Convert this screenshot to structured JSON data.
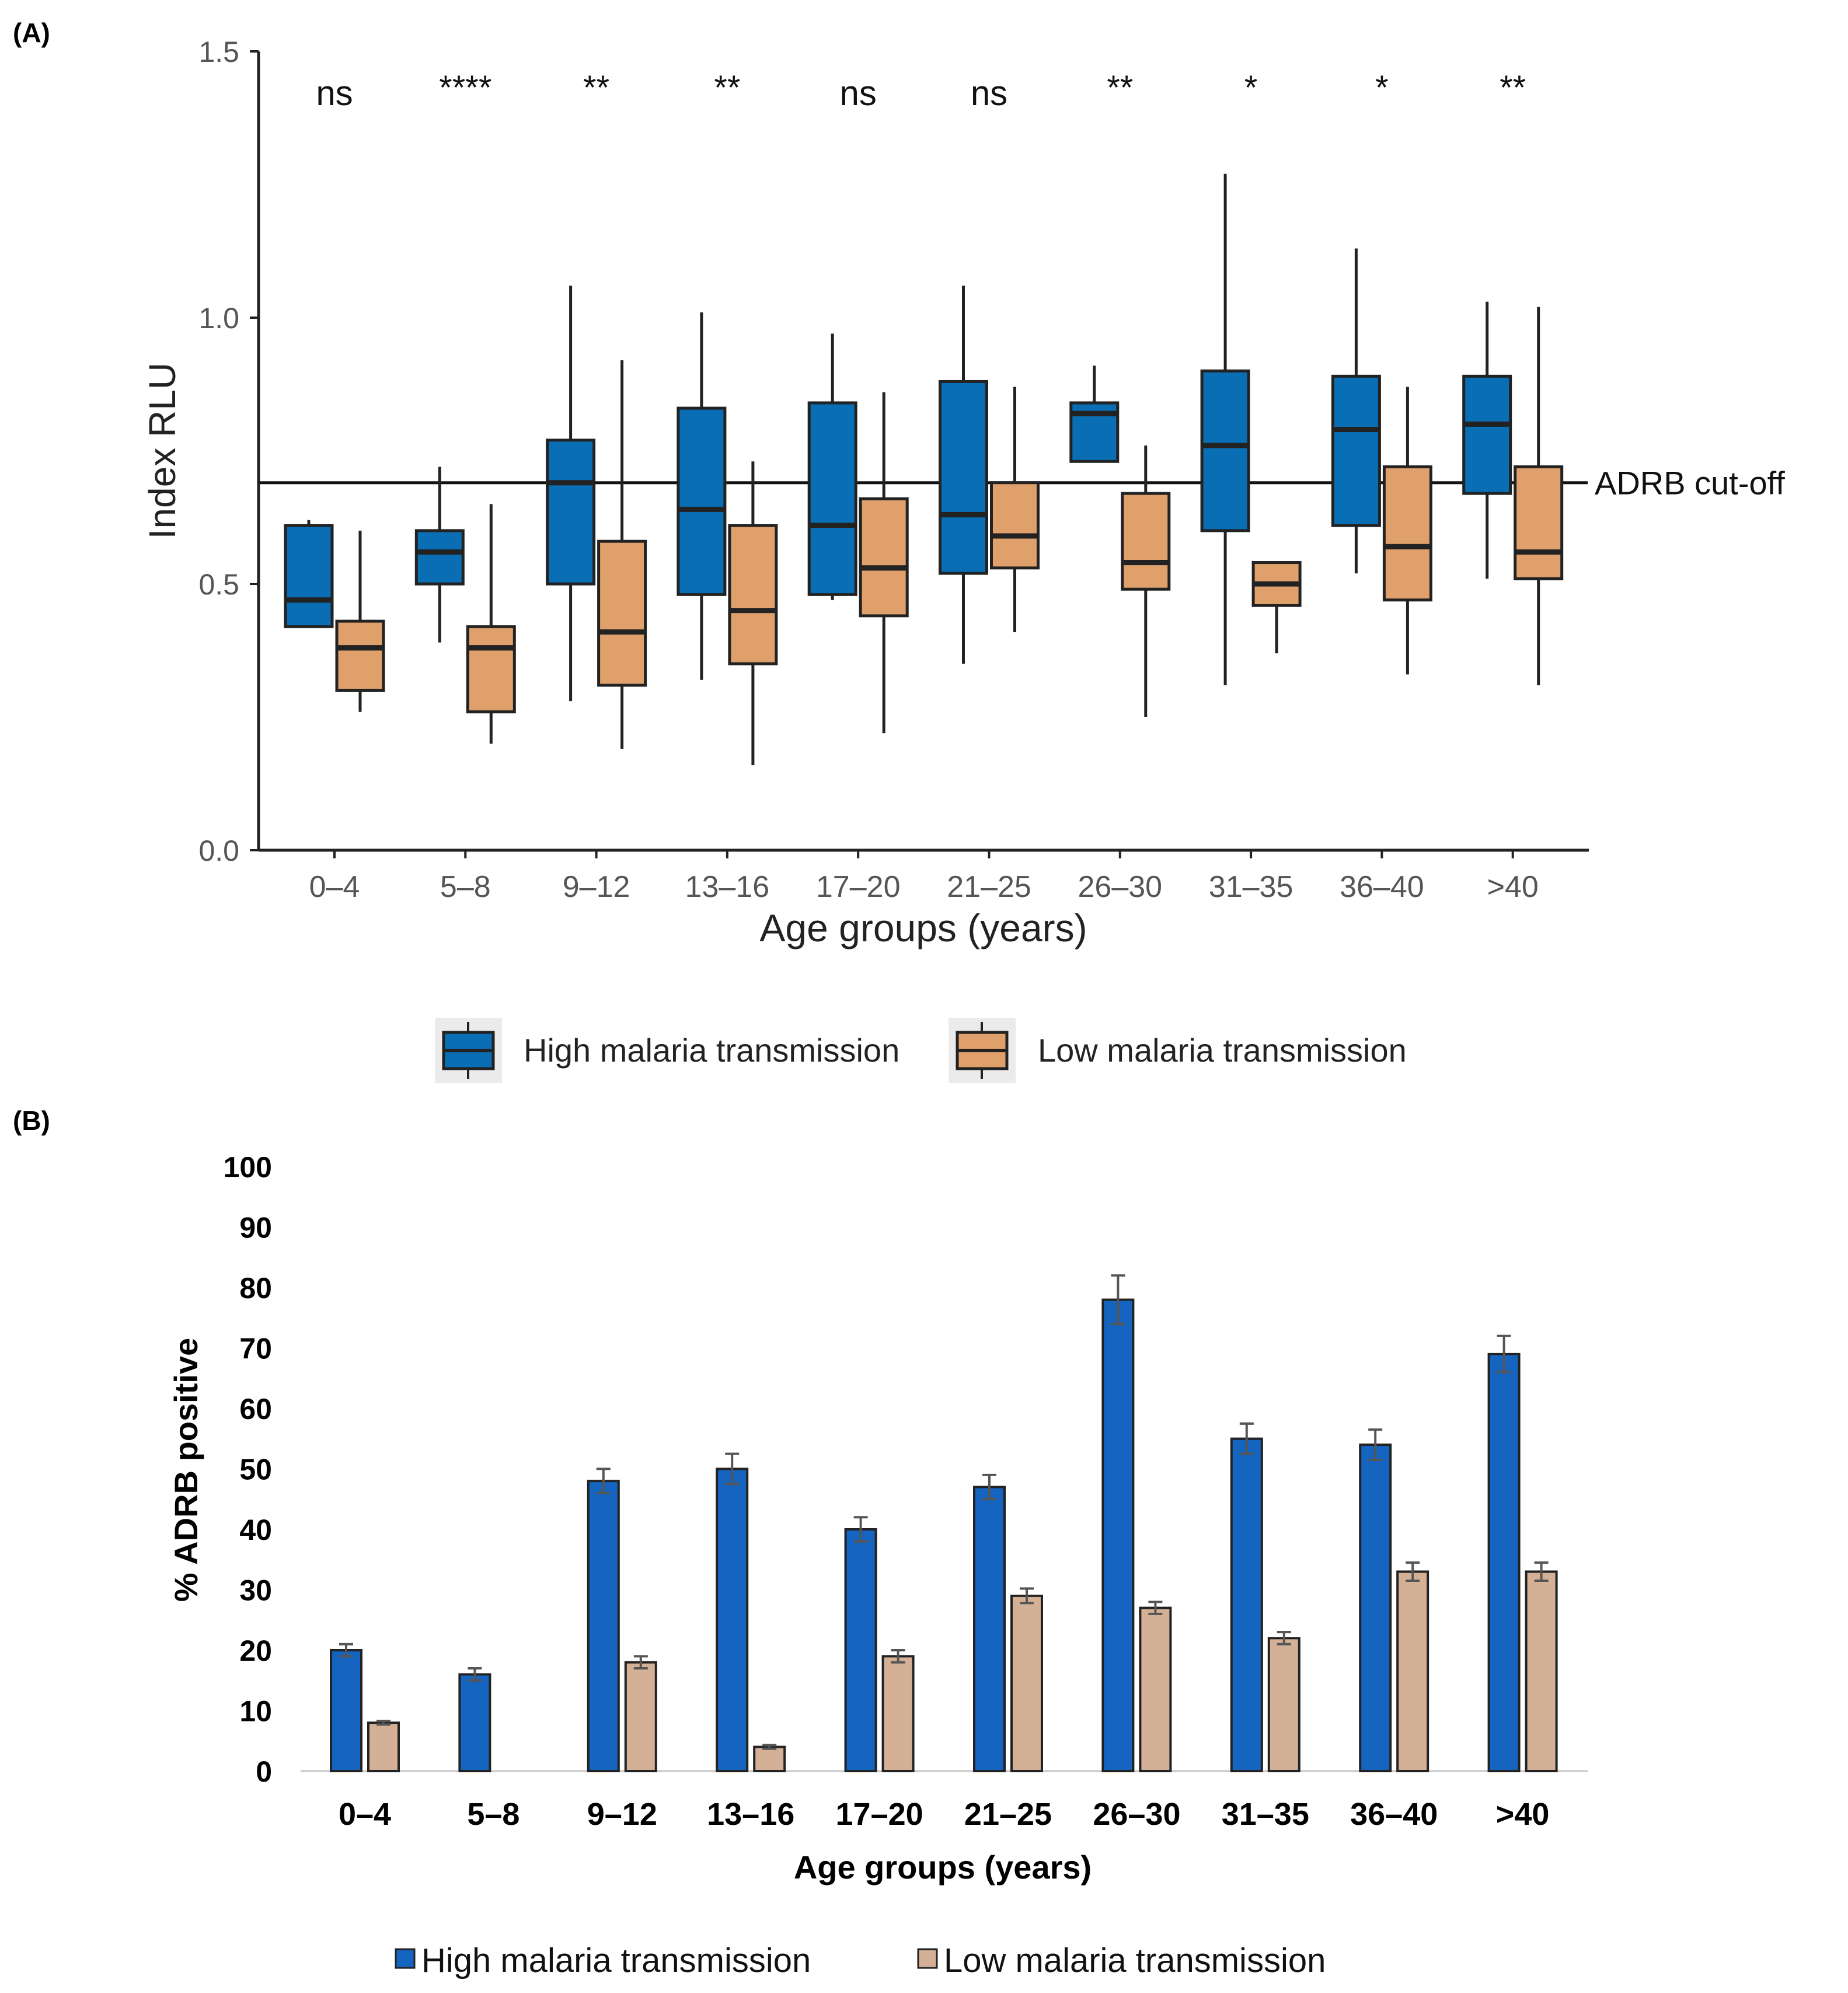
{
  "panel_a_label": "(A)",
  "panel_b_label": "(B)",
  "colors": {
    "high_box": "#0a6eb4",
    "low_box": "#e0a06c",
    "high_bar": "#1565c0",
    "low_bar": "#d4b196",
    "outline": "#222222",
    "error": "#555555",
    "axis_text": "#555555"
  },
  "chart_data": [
    {
      "type": "box",
      "title": "",
      "xlabel": "Age groups (years)",
      "ylabel": "Index RLU",
      "ylim": [
        0,
        1.5
      ],
      "yticks": [
        0.0,
        0.5,
        1.0,
        1.5
      ],
      "ytick_labels": [
        "0.0",
        "0.5",
        "1.0",
        "1.5"
      ],
      "categories": [
        "0–4",
        "5–8",
        "9–12",
        "13–16",
        "17–20",
        "21–25",
        "26–30",
        "31–35",
        "36–40",
        ">40"
      ],
      "significance": [
        "ns",
        "****",
        "**",
        "**",
        "ns",
        "ns",
        "**",
        "*",
        "*",
        "**"
      ],
      "reference_line": {
        "value": 0.69,
        "label": "ADRB cut-off"
      },
      "legend": {
        "position": "bottom",
        "entries": [
          "High malaria transmission",
          "Low malaria transmission"
        ]
      },
      "series": [
        {
          "name": "High malaria transmission",
          "boxes": [
            {
              "min": 0.42,
              "q1": 0.42,
              "median": 0.47,
              "q3": 0.61,
              "max": 0.62
            },
            {
              "min": 0.39,
              "q1": 0.5,
              "median": 0.56,
              "q3": 0.6,
              "max": 0.72
            },
            {
              "min": 0.28,
              "q1": 0.5,
              "median": 0.69,
              "q3": 0.77,
              "max": 1.06
            },
            {
              "min": 0.32,
              "q1": 0.48,
              "median": 0.64,
              "q3": 0.83,
              "max": 1.01
            },
            {
              "min": 0.47,
              "q1": 0.48,
              "median": 0.61,
              "q3": 0.84,
              "max": 0.97
            },
            {
              "min": 0.35,
              "q1": 0.52,
              "median": 0.63,
              "q3": 0.88,
              "max": 1.06
            },
            {
              "min": 0.73,
              "q1": 0.73,
              "median": 0.82,
              "q3": 0.84,
              "max": 0.91
            },
            {
              "min": 0.31,
              "q1": 0.6,
              "median": 0.76,
              "q3": 0.9,
              "max": 1.27
            },
            {
              "min": 0.52,
              "q1": 0.61,
              "median": 0.79,
              "q3": 0.89,
              "max": 1.13
            },
            {
              "min": 0.51,
              "q1": 0.67,
              "median": 0.8,
              "q3": 0.89,
              "max": 1.03
            }
          ]
        },
        {
          "name": "Low malaria transmission",
          "boxes": [
            {
              "min": 0.26,
              "q1": 0.3,
              "median": 0.38,
              "q3": 0.43,
              "max": 0.6
            },
            {
              "min": 0.2,
              "q1": 0.26,
              "median": 0.38,
              "q3": 0.42,
              "max": 0.65
            },
            {
              "min": 0.19,
              "q1": 0.31,
              "median": 0.41,
              "q3": 0.58,
              "max": 0.92
            },
            {
              "min": 0.16,
              "q1": 0.35,
              "median": 0.45,
              "q3": 0.61,
              "max": 0.73
            },
            {
              "min": 0.22,
              "q1": 0.44,
              "median": 0.53,
              "q3": 0.66,
              "max": 0.86
            },
            {
              "min": 0.41,
              "q1": 0.53,
              "median": 0.59,
              "q3": 0.69,
              "max": 0.87
            },
            {
              "min": 0.25,
              "q1": 0.49,
              "median": 0.54,
              "q3": 0.67,
              "max": 0.76
            },
            {
              "min": 0.37,
              "q1": 0.46,
              "median": 0.5,
              "q3": 0.54,
              "max": 0.54
            },
            {
              "min": 0.33,
              "q1": 0.47,
              "median": 0.57,
              "q3": 0.72,
              "max": 0.87
            },
            {
              "min": 0.31,
              "q1": 0.51,
              "median": 0.56,
              "q3": 0.72,
              "max": 1.02
            }
          ]
        }
      ]
    },
    {
      "type": "bar",
      "title": "",
      "xlabel": "Age groups (years)",
      "ylabel": "% ADRB positive",
      "ylim": [
        0,
        100
      ],
      "yticks": [
        0,
        10,
        20,
        30,
        40,
        50,
        60,
        70,
        80,
        90,
        100
      ],
      "ytick_labels": [
        "0",
        "10",
        "20",
        "30",
        "40",
        "50",
        "60",
        "70",
        "80",
        "90",
        "100"
      ],
      "categories": [
        "0–4",
        "5–8",
        "9–12",
        "13–16",
        "17–20",
        "21–25",
        "26–30",
        "31–35",
        "36–40",
        ">40"
      ],
      "legend": {
        "position": "bottom",
        "entries": [
          "High malaria transmission",
          "Low malaria transmission"
        ]
      },
      "series": [
        {
          "name": "High malaria transmission",
          "values": [
            20,
            16,
            48,
            50,
            40,
            47,
            78,
            55,
            54,
            69
          ],
          "errors": [
            1,
            1,
            2,
            2.5,
            2,
            2,
            4,
            2.5,
            2.5,
            3
          ]
        },
        {
          "name": "Low malaria transmission",
          "values": [
            8,
            0,
            18,
            4,
            19,
            29,
            27,
            22,
            33,
            33
          ],
          "errors": [
            0.3,
            0,
            1,
            0.3,
            1,
            1.2,
            1,
            1,
            1.5,
            1.5
          ]
        }
      ]
    }
  ]
}
